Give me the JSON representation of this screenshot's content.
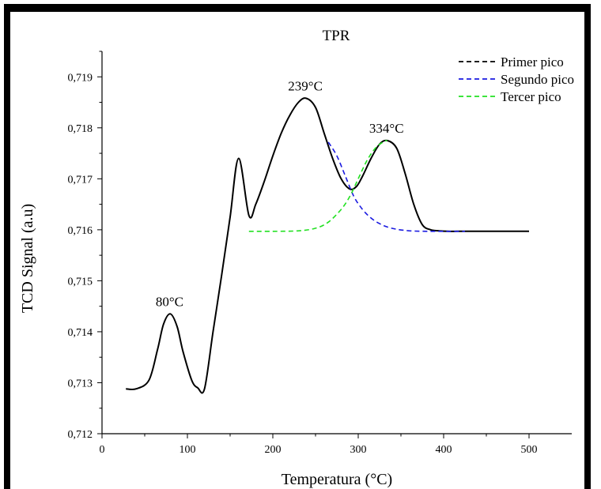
{
  "chart_data": {
    "type": "line",
    "title": "TPR",
    "xlabel": "Temperatura (°C)",
    "ylabel": "TCD Signal (a.u)",
    "xlim": [
      0,
      550
    ],
    "ylim": [
      0.712,
      0.7195
    ],
    "x_ticks": [
      "0",
      "100",
      "200",
      "300",
      "400",
      "500"
    ],
    "x_tick_values": [
      0,
      100,
      200,
      300,
      400,
      500
    ],
    "y_ticks": [
      "0,712",
      "0,713",
      "0,714",
      "0,715",
      "0,716",
      "0,717",
      "0,718",
      "0,719"
    ],
    "y_tick_values": [
      0.712,
      0.713,
      0.714,
      0.715,
      0.716,
      0.717,
      0.718,
      0.719
    ],
    "grid": false,
    "legend_position": "top-right",
    "series": [
      {
        "name": "",
        "color": "#000000",
        "style": "solid",
        "x": [
          28,
          40,
          55,
          65,
          72,
          80,
          88,
          95,
          105,
          112,
          120,
          130,
          140,
          150,
          160,
          172,
          180,
          190,
          200,
          210,
          220,
          230,
          239,
          250,
          260,
          270,
          280,
          290,
          298,
          305,
          315,
          325,
          334,
          345,
          355,
          365,
          375,
          385,
          395,
          405,
          415,
          425,
          450,
          475,
          500
        ],
        "y": [
          0.71288,
          0.71288,
          0.71305,
          0.71365,
          0.71415,
          0.71435,
          0.7141,
          0.7136,
          0.71305,
          0.7129,
          0.71288,
          0.714,
          0.7151,
          0.71625,
          0.7174,
          0.71628,
          0.7165,
          0.71695,
          0.71745,
          0.7179,
          0.71825,
          0.7185,
          0.71858,
          0.7184,
          0.7179,
          0.7174,
          0.717,
          0.7168,
          0.71685,
          0.71705,
          0.7174,
          0.71768,
          0.71775,
          0.7176,
          0.7171,
          0.7165,
          0.7161,
          0.716,
          0.71598,
          0.71597,
          0.71597,
          0.71597,
          0.71597,
          0.71597,
          0.71597
        ]
      },
      {
        "name": "Primer pico",
        "color": "#000000",
        "style": "dashed",
        "x": [],
        "y": []
      },
      {
        "name": "Segundo pico",
        "color": "#1a1ae0",
        "style": "dashed",
        "x": [
          265,
          275,
          285,
          295,
          305,
          315,
          325,
          335,
          345,
          360,
          380,
          400,
          425
        ],
        "y": [
          0.71772,
          0.71745,
          0.71705,
          0.71665,
          0.7164,
          0.71623,
          0.71612,
          0.71605,
          0.71601,
          0.71598,
          0.71597,
          0.71597,
          0.71597
        ]
      },
      {
        "name": "Tercer pico",
        "color": "#22e022",
        "style": "dashed",
        "x": [
          172,
          200,
          230,
          250,
          265,
          280,
          290,
          300,
          310,
          320,
          330,
          334
        ],
        "y": [
          0.71597,
          0.71597,
          0.71598,
          0.71603,
          0.71615,
          0.7164,
          0.71665,
          0.717,
          0.71735,
          0.7176,
          0.71773,
          0.71775
        ]
      }
    ],
    "annotations": [
      {
        "text": "80°C",
        "x": 80,
        "y": 0.71435
      },
      {
        "text": "239°C",
        "x": 239,
        "y": 0.71858
      },
      {
        "text": "334°C",
        "x": 334,
        "y": 0.71775
      }
    ]
  }
}
